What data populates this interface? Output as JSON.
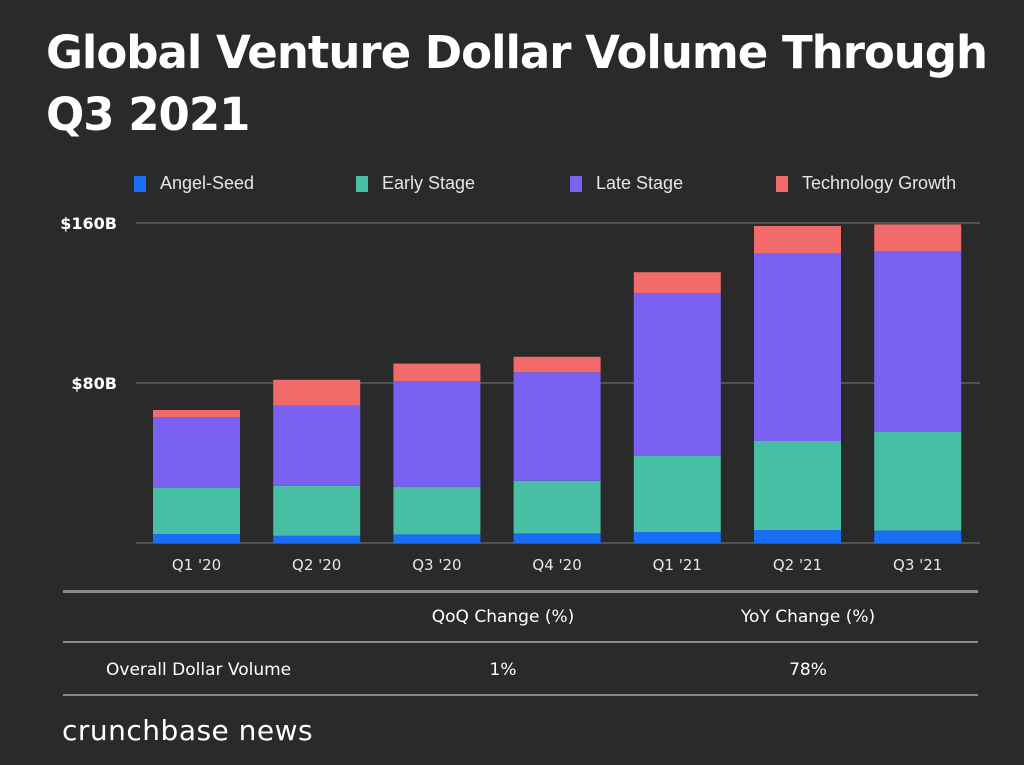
{
  "title": "Global Venture Dollar Volume Through Q3 2021",
  "chart_data": {
    "type": "bar",
    "stacked": true,
    "title": "Global Venture Dollar Volume Through Q3 2021",
    "xlabel": "",
    "ylabel": "",
    "ylim": [
      0,
      160
    ],
    "y_unit": "$B",
    "ytick_values": [
      80,
      160
    ],
    "ytick_labels": [
      "$80B",
      "$160B"
    ],
    "grid": true,
    "legend_position": "top",
    "categories": [
      "Q1 '20",
      "Q2 '20",
      "Q3 '20",
      "Q4 '20",
      "Q1 '21",
      "Q2 '21",
      "Q3 '21"
    ],
    "series": [
      {
        "name": "Angel-Seed",
        "color": "#1a6ef5",
        "values": [
          4.5,
          3.6,
          4.3,
          4.8,
          5.5,
          6.5,
          6.2
        ]
      },
      {
        "name": "Early Stage",
        "color": "#48bfa4",
        "values": [
          23.0,
          25.0,
          23.8,
          26.3,
          38.2,
          44.5,
          49.3
        ]
      },
      {
        "name": "Late Stage",
        "color": "#7b61f2",
        "values": [
          35.5,
          40.0,
          52.8,
          54.3,
          81.2,
          93.8,
          90.5
        ]
      },
      {
        "name": "Technology Growth",
        "color": "#f26b6b",
        "values": [
          3.5,
          13.0,
          8.8,
          7.7,
          10.5,
          13.7,
          13.3
        ]
      }
    ]
  },
  "table": {
    "headers": [
      "",
      "QoQ Change (%)",
      "YoY Change (%)"
    ],
    "rows": [
      {
        "label": "Overall Dollar Volume",
        "qoq": "1%",
        "yoy": "78%"
      }
    ]
  },
  "brand": "crunchbase news"
}
